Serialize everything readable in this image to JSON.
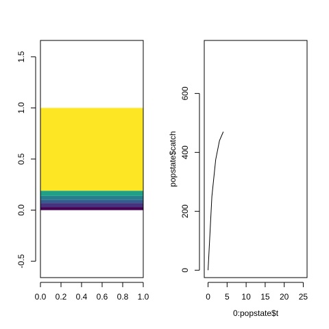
{
  "chart_data": [
    {
      "type": "area",
      "title": "",
      "xlabel": "",
      "ylabel": "",
      "xlim": [
        0,
        1
      ],
      "ylim": [
        -0.66,
        1.66
      ],
      "x_ticks": [
        "0.0",
        "0.2",
        "0.4",
        "0.6",
        "0.8",
        "1.0"
      ],
      "y_ticks": [
        "-0.5",
        "0.0",
        "0.5",
        "1.0",
        "1.5"
      ],
      "x_tick_values": [
        0,
        0.2,
        0.4,
        0.6,
        0.8,
        1.0
      ],
      "y_tick_values": [
        -0.5,
        0,
        0.5,
        1.0,
        1.5
      ],
      "bands": [
        {
          "from": 0.0,
          "to": 0.03,
          "color": "#440154"
        },
        {
          "from": 0.03,
          "to": 0.07,
          "color": "#46337e"
        },
        {
          "from": 0.07,
          "to": 0.1,
          "color": "#365c8d"
        },
        {
          "from": 0.1,
          "to": 0.14,
          "color": "#277f8e"
        },
        {
          "from": 0.14,
          "to": 0.19,
          "color": "#1fa187"
        },
        {
          "from": 0.19,
          "to": 1.0,
          "color": "#fde725"
        }
      ]
    },
    {
      "type": "line",
      "title": "",
      "xlabel": "0:popstate$t",
      "ylabel": "popstate$catch",
      "xlim": [
        -1,
        26
      ],
      "ylim": [
        -25,
        780
      ],
      "x_ticks": [
        "0",
        "5",
        "10",
        "15",
        "20",
        "25"
      ],
      "y_ticks": [
        "0",
        "200",
        "400",
        "600"
      ],
      "x_tick_values": [
        0,
        5,
        10,
        15,
        20,
        25
      ],
      "y_tick_values": [
        0,
        200,
        400,
        600
      ],
      "line_color": "#000000",
      "x": [
        0,
        1,
        2,
        3,
        4
      ],
      "y": [
        0,
        250,
        375,
        440,
        470
      ]
    }
  ]
}
